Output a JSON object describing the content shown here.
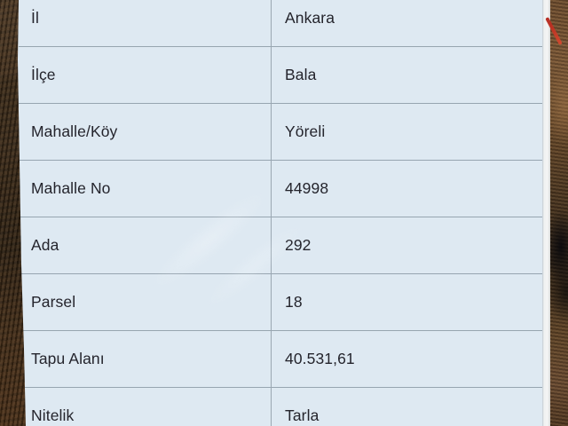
{
  "table": {
    "rows": [
      {
        "label": "İl",
        "value": "Ankara"
      },
      {
        "label": "İlçe",
        "value": "Bala"
      },
      {
        "label": "Mahalle/Köy",
        "value": "Yöreli"
      },
      {
        "label": "Mahalle No",
        "value": "44998"
      },
      {
        "label": "Ada",
        "value": "292"
      },
      {
        "label": "Parsel",
        "value": "18"
      },
      {
        "label": "Tapu Alanı",
        "value": "40.531,61"
      },
      {
        "label": "Nitelik",
        "value": "Tarla"
      }
    ]
  },
  "colors": {
    "table_background": "#dee9f2",
    "row_separator": "#97a5b0",
    "text": "#24242c",
    "photo_edge_brown": "#3b2b19",
    "red_mark": "#c3261d"
  }
}
